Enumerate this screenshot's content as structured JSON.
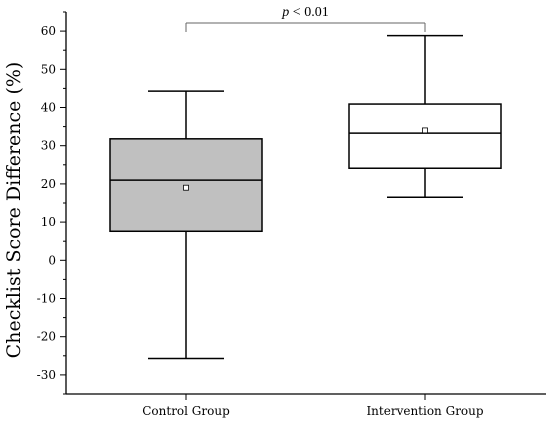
{
  "chart_data": {
    "type": "box",
    "ylabel": "Checklist Score Difference (%)",
    "xlabel": "",
    "ylim": [
      -35,
      65
    ],
    "yticks": [
      -30,
      -20,
      -10,
      0,
      10,
      20,
      30,
      40,
      50,
      60
    ],
    "ytick_labels": [
      "-30",
      "-20",
      "-10",
      "0",
      "10",
      "20",
      "30",
      "40",
      "50",
      "60"
    ],
    "categories": [
      "Control Group",
      "Intervention Group"
    ],
    "boxes": [
      {
        "category": "Control Group",
        "whisker_low": -25.7,
        "q1": 7.6,
        "median": 21.0,
        "q3": 31.8,
        "whisker_high": 44.3,
        "mean": 19.0,
        "fill": "#c0c0c0"
      },
      {
        "category": "Intervention Group",
        "whisker_low": 16.5,
        "q1": 24.1,
        "median": 33.3,
        "q3": 40.9,
        "whisker_high": 58.8,
        "mean": 34.0,
        "fill": "#ffffff"
      }
    ],
    "annotation": {
      "italic": "p",
      "rest": " < 0.01"
    },
    "grid": false,
    "legend": "none"
  }
}
